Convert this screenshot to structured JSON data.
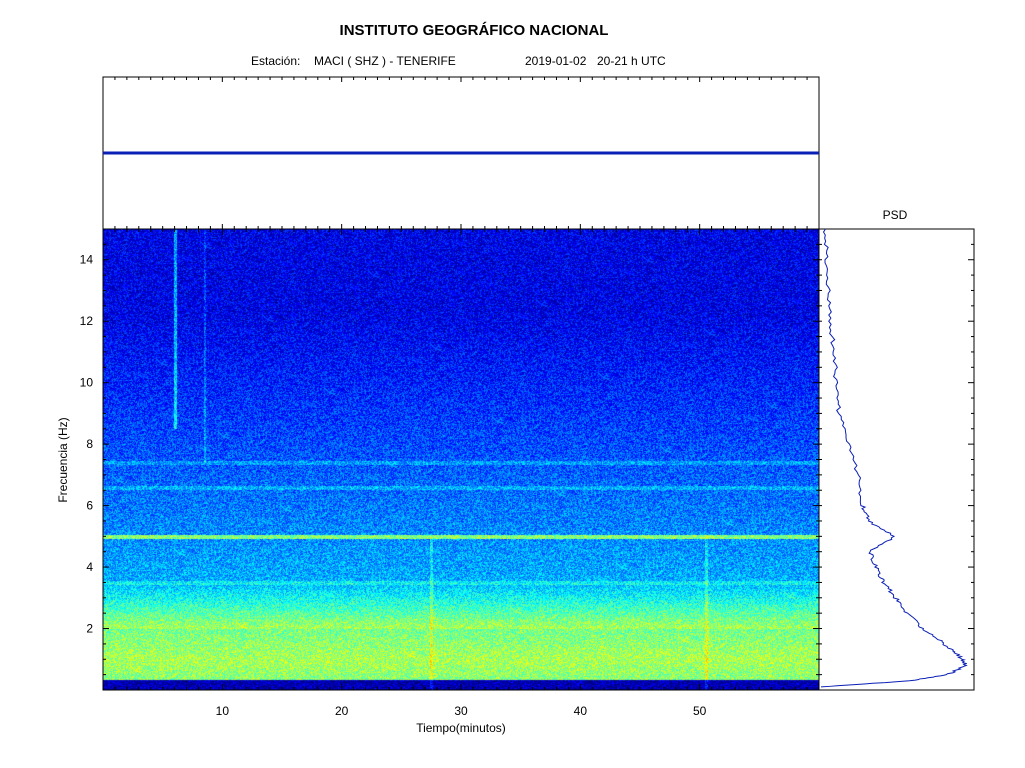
{
  "header": {
    "title": "INSTITUTO GEOGRÁFICO NACIONAL",
    "station_label": "Estación:",
    "station": "MACI ( SHZ ) - TENERIFE",
    "date": "2019-01-02",
    "time_range": "20-21 h UTC"
  },
  "chart_data": [
    {
      "type": "line",
      "name": "seismogram",
      "x": [
        0,
        60
      ],
      "y": [
        0,
        0
      ],
      "xlim": [
        0,
        60
      ],
      "line_color": "#0a1fb5"
    },
    {
      "type": "heatmap",
      "name": "spectrogram",
      "xlabel": "Tiempo(minutos)",
      "ylabel": "Frecuencia  (Hz)",
      "xlim": [
        0,
        60
      ],
      "ylim": [
        0,
        15
      ],
      "x_ticks": [
        10,
        20,
        30,
        40,
        50
      ],
      "y_ticks": [
        2,
        4,
        6,
        8,
        10,
        12,
        14
      ],
      "colormap": [
        "#00007f",
        "#0000ff",
        "#0080ff",
        "#00ffff",
        "#80ff80",
        "#ffff00",
        "#ff8000",
        "#ff0000"
      ],
      "horizontal_lines_hz": [
        5.0,
        3.5,
        6.6,
        7.4
      ],
      "vertical_events_min": [
        6.0,
        8.5,
        27.5,
        50.5
      ],
      "energy_band_hz": [
        0.5,
        2.0
      ]
    },
    {
      "type": "line",
      "name": "psd",
      "title": "PSD",
      "y": [
        0.1,
        0.3,
        0.5,
        0.8,
        1.0,
        1.3,
        1.6,
        2.0,
        2.5,
        3.0,
        3.5,
        4.0,
        4.5,
        5.0,
        5.5,
        6.0,
        7.0,
        8.0,
        9.0,
        10.0,
        11.0,
        12.0,
        13.0,
        14.0,
        15.0
      ],
      "x": [
        0.0,
        0.6,
        0.85,
        0.97,
        0.95,
        0.88,
        0.8,
        0.68,
        0.58,
        0.5,
        0.42,
        0.37,
        0.33,
        0.5,
        0.32,
        0.28,
        0.25,
        0.18,
        0.12,
        0.1,
        0.09,
        0.06,
        0.05,
        0.04,
        0.03
      ],
      "ylim": [
        0,
        15
      ],
      "line_color": "#0a1fb5"
    }
  ]
}
